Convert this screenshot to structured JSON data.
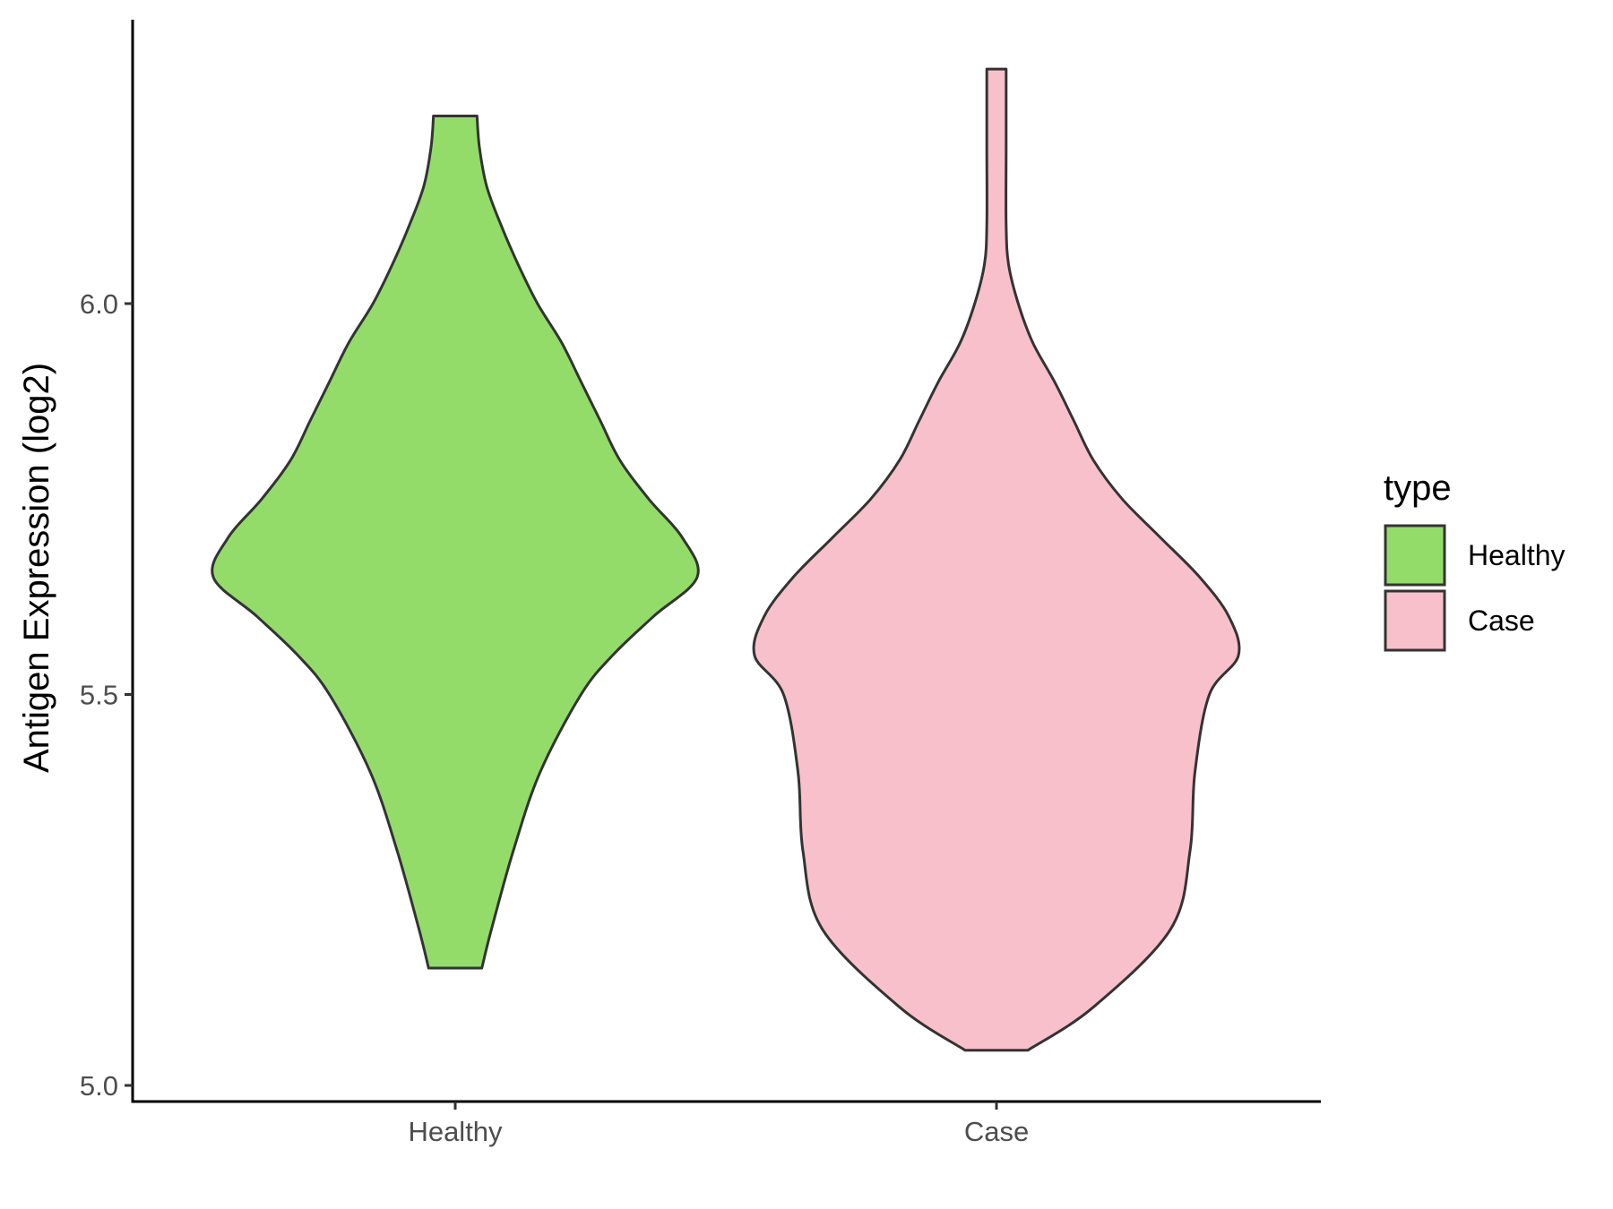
{
  "chart_data": {
    "type": "violin",
    "title": "",
    "xlabel": "",
    "ylabel": "Antigen Expression (log2)",
    "ylim": [
      4.99,
      6.36
    ],
    "yticks": [
      5.0,
      5.5,
      6.0
    ],
    "ytick_labels": [
      "5.0",
      "5.5",
      "6.0"
    ],
    "categories": [
      "Healthy",
      "Case"
    ],
    "grid": false,
    "legend": {
      "title": "type",
      "placement": "right",
      "entries": [
        "Healthy",
        "Case"
      ]
    },
    "series": [
      {
        "name": "Healthy",
        "color": "#93DC6A",
        "min": 5.15,
        "max": 6.24,
        "profile": [
          [
            5.15,
            0.11
          ],
          [
            5.2,
            0.15
          ],
          [
            5.3,
            0.24
          ],
          [
            5.4,
            0.35
          ],
          [
            5.5,
            0.52
          ],
          [
            5.55,
            0.65
          ],
          [
            5.6,
            0.82
          ],
          [
            5.65,
            1.0
          ],
          [
            5.7,
            0.94
          ],
          [
            5.75,
            0.8
          ],
          [
            5.8,
            0.68
          ],
          [
            5.85,
            0.6
          ],
          [
            5.9,
            0.52
          ],
          [
            5.95,
            0.44
          ],
          [
            6.0,
            0.34
          ],
          [
            6.05,
            0.26
          ],
          [
            6.1,
            0.19
          ],
          [
            6.15,
            0.13
          ],
          [
            6.2,
            0.1
          ],
          [
            6.24,
            0.09
          ]
        ]
      },
      {
        "name": "Case",
        "color": "#F8C0CB",
        "min": 5.045,
        "max": 6.3,
        "profile": [
          [
            5.045,
            0.13
          ],
          [
            5.1,
            0.4
          ],
          [
            5.2,
            0.72
          ],
          [
            5.3,
            0.8
          ],
          [
            5.4,
            0.82
          ],
          [
            5.5,
            0.88
          ],
          [
            5.55,
            1.0
          ],
          [
            5.6,
            0.96
          ],
          [
            5.65,
            0.84
          ],
          [
            5.7,
            0.68
          ],
          [
            5.75,
            0.52
          ],
          [
            5.8,
            0.4
          ],
          [
            5.85,
            0.32
          ],
          [
            5.9,
            0.24
          ],
          [
            5.95,
            0.15
          ],
          [
            6.0,
            0.09
          ],
          [
            6.05,
            0.05
          ],
          [
            6.1,
            0.04
          ],
          [
            6.2,
            0.04
          ],
          [
            6.3,
            0.04
          ]
        ]
      }
    ]
  }
}
